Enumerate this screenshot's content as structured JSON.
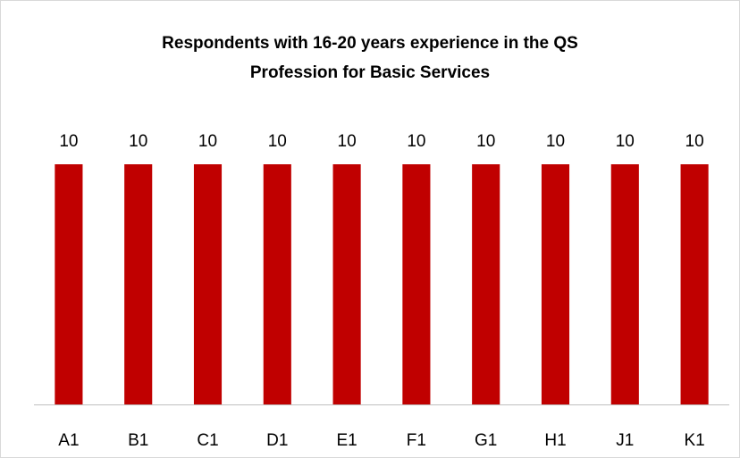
{
  "chart_data": {
    "type": "bar",
    "title": "Respondents with 16-20 years experience in the QS Profession for Basic Services",
    "categories": [
      "A1",
      "B1",
      "C1",
      "D1",
      "E1",
      "F1",
      "G1",
      "H1",
      "J1",
      "K1"
    ],
    "values": [
      10,
      10,
      10,
      10,
      10,
      10,
      10,
      10,
      10,
      10
    ],
    "color": "#c00000"
  }
}
